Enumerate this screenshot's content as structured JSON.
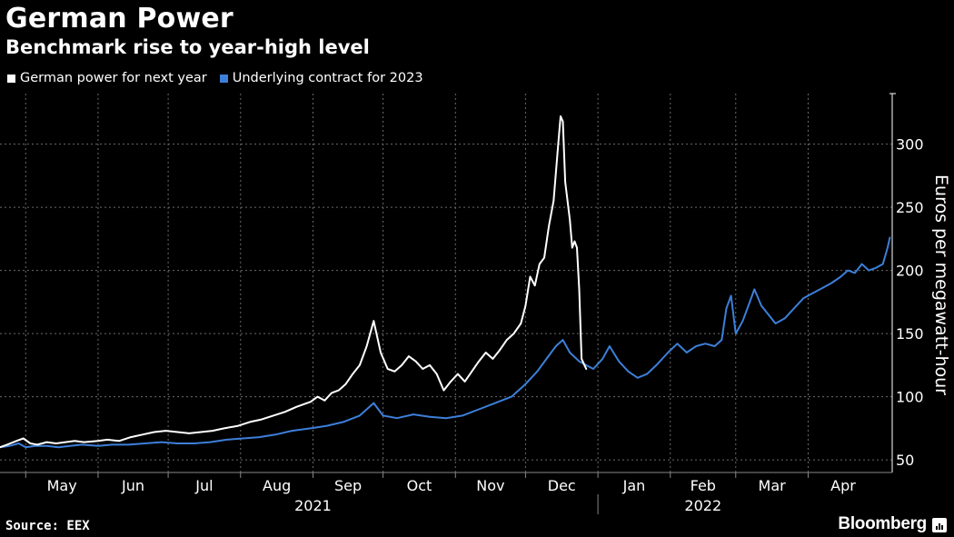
{
  "header": {
    "title": "German Power",
    "subtitle": "Benchmark rise to year-high level"
  },
  "footer": {
    "source": "Source: EEX",
    "brand": "Bloomberg",
    "brand_icon": "bloomberg-chart-icon"
  },
  "colors": {
    "background": "#000000",
    "series_white": "#ffffff",
    "series_blue": "#3d7fd9",
    "grid": "#6b6b6b"
  },
  "chart_data": {
    "type": "line",
    "title": "German Power",
    "subtitle": "Benchmark rise to year-high level",
    "ylabel": "Euros per megawatt-hour",
    "xlabel": "",
    "ylim": [
      40,
      340
    ],
    "xlim": [
      "2021-04-20",
      "2022-05-07"
    ],
    "yticks": [
      50,
      100,
      150,
      200,
      250,
      300
    ],
    "xtick_labels": [
      "May",
      "Jun",
      "Jul",
      "Aug",
      "Sep",
      "Oct",
      "Nov",
      "Dec",
      "Jan",
      "Feb",
      "Mar",
      "Apr"
    ],
    "xtick_dates": [
      "2021-05-01",
      "2021-06-01",
      "2021-07-01",
      "2021-08-01",
      "2021-09-01",
      "2021-10-01",
      "2021-11-01",
      "2021-12-01",
      "2022-01-01",
      "2022-02-01",
      "2022-03-01",
      "2022-04-01"
    ],
    "year_labels": [
      {
        "label": "2021",
        "date": "2021-09-01"
      },
      {
        "label": "2022",
        "date": "2022-02-15"
      }
    ],
    "year_divider": "2022-01-01",
    "grid": true,
    "legend_position": "top-left",
    "y_axis_side": "right",
    "series": [
      {
        "name": "German power for next year",
        "color": "#ffffff",
        "points": [
          [
            "2021-04-20",
            60
          ],
          [
            "2021-04-23",
            62
          ],
          [
            "2021-04-27",
            65
          ],
          [
            "2021-04-30",
            67
          ],
          [
            "2021-05-03",
            63
          ],
          [
            "2021-05-06",
            62
          ],
          [
            "2021-05-10",
            64
          ],
          [
            "2021-05-14",
            63
          ],
          [
            "2021-05-18",
            64
          ],
          [
            "2021-05-22",
            65
          ],
          [
            "2021-05-26",
            64
          ],
          [
            "2021-06-01",
            65
          ],
          [
            "2021-06-05",
            66
          ],
          [
            "2021-06-10",
            65
          ],
          [
            "2021-06-15",
            68
          ],
          [
            "2021-06-20",
            70
          ],
          [
            "2021-06-25",
            72
          ],
          [
            "2021-06-30",
            73
          ],
          [
            "2021-07-05",
            72
          ],
          [
            "2021-07-10",
            71
          ],
          [
            "2021-07-15",
            72
          ],
          [
            "2021-07-20",
            73
          ],
          [
            "2021-07-25",
            75
          ],
          [
            "2021-07-31",
            77
          ],
          [
            "2021-08-05",
            80
          ],
          [
            "2021-08-10",
            82
          ],
          [
            "2021-08-15",
            85
          ],
          [
            "2021-08-20",
            88
          ],
          [
            "2021-08-25",
            92
          ],
          [
            "2021-08-31",
            96
          ],
          [
            "2021-09-03",
            100
          ],
          [
            "2021-09-06",
            97
          ],
          [
            "2021-09-09",
            103
          ],
          [
            "2021-09-12",
            105
          ],
          [
            "2021-09-15",
            110
          ],
          [
            "2021-09-18",
            118
          ],
          [
            "2021-09-21",
            125
          ],
          [
            "2021-09-24",
            140
          ],
          [
            "2021-09-27",
            160
          ],
          [
            "2021-09-30",
            135
          ],
          [
            "2021-10-03",
            122
          ],
          [
            "2021-10-06",
            120
          ],
          [
            "2021-10-09",
            125
          ],
          [
            "2021-10-12",
            132
          ],
          [
            "2021-10-15",
            128
          ],
          [
            "2021-10-18",
            122
          ],
          [
            "2021-10-21",
            125
          ],
          [
            "2021-10-24",
            118
          ],
          [
            "2021-10-27",
            105
          ],
          [
            "2021-10-30",
            112
          ],
          [
            "2021-11-02",
            118
          ],
          [
            "2021-11-05",
            112
          ],
          [
            "2021-11-08",
            120
          ],
          [
            "2021-11-11",
            128
          ],
          [
            "2021-11-14",
            135
          ],
          [
            "2021-11-17",
            130
          ],
          [
            "2021-11-20",
            137
          ],
          [
            "2021-11-23",
            145
          ],
          [
            "2021-11-26",
            150
          ],
          [
            "2021-11-29",
            158
          ],
          [
            "2021-12-01",
            172
          ],
          [
            "2021-12-03",
            195
          ],
          [
            "2021-12-05",
            188
          ],
          [
            "2021-12-07",
            205
          ],
          [
            "2021-12-09",
            210
          ],
          [
            "2021-12-11",
            235
          ],
          [
            "2021-12-13",
            255
          ],
          [
            "2021-12-15",
            300
          ],
          [
            "2021-12-16",
            322
          ],
          [
            "2021-12-17",
            318
          ],
          [
            "2021-12-18",
            270
          ],
          [
            "2021-12-20",
            240
          ],
          [
            "2021-12-21",
            218
          ],
          [
            "2021-12-22",
            223
          ],
          [
            "2021-12-23",
            218
          ],
          [
            "2021-12-24",
            185
          ],
          [
            "2021-12-25",
            130
          ],
          [
            "2021-12-27",
            122
          ]
        ]
      },
      {
        "name": "Underlying contract for 2023",
        "color": "#3d7fd9",
        "points": [
          [
            "2021-04-20",
            60
          ],
          [
            "2021-04-24",
            61
          ],
          [
            "2021-04-28",
            63
          ],
          [
            "2021-05-01",
            60
          ],
          [
            "2021-05-05",
            61
          ],
          [
            "2021-05-10",
            61
          ],
          [
            "2021-05-15",
            60
          ],
          [
            "2021-05-20",
            61
          ],
          [
            "2021-05-25",
            62
          ],
          [
            "2021-06-01",
            61
          ],
          [
            "2021-06-07",
            62
          ],
          [
            "2021-06-14",
            62
          ],
          [
            "2021-06-21",
            63
          ],
          [
            "2021-06-28",
            64
          ],
          [
            "2021-07-05",
            63
          ],
          [
            "2021-07-12",
            63
          ],
          [
            "2021-07-19",
            64
          ],
          [
            "2021-07-26",
            66
          ],
          [
            "2021-08-02",
            67
          ],
          [
            "2021-08-09",
            68
          ],
          [
            "2021-08-16",
            70
          ],
          [
            "2021-08-23",
            73
          ],
          [
            "2021-08-31",
            75
          ],
          [
            "2021-09-07",
            77
          ],
          [
            "2021-09-14",
            80
          ],
          [
            "2021-09-21",
            85
          ],
          [
            "2021-09-27",
            95
          ],
          [
            "2021-10-01",
            85
          ],
          [
            "2021-10-07",
            83
          ],
          [
            "2021-10-14",
            86
          ],
          [
            "2021-10-21",
            84
          ],
          [
            "2021-10-28",
            83
          ],
          [
            "2021-11-04",
            85
          ],
          [
            "2021-11-11",
            90
          ],
          [
            "2021-11-18",
            95
          ],
          [
            "2021-11-25",
            100
          ],
          [
            "2021-12-01",
            110
          ],
          [
            "2021-12-06",
            120
          ],
          [
            "2021-12-10",
            130
          ],
          [
            "2021-12-14",
            140
          ],
          [
            "2021-12-17",
            145
          ],
          [
            "2021-12-20",
            135
          ],
          [
            "2021-12-24",
            128
          ],
          [
            "2021-12-27",
            125
          ],
          [
            "2021-12-30",
            122
          ],
          [
            "2022-01-03",
            130
          ],
          [
            "2022-01-06",
            140
          ],
          [
            "2022-01-10",
            128
          ],
          [
            "2022-01-14",
            120
          ],
          [
            "2022-01-18",
            115
          ],
          [
            "2022-01-22",
            118
          ],
          [
            "2022-01-26",
            125
          ],
          [
            "2022-01-31",
            135
          ],
          [
            "2022-02-04",
            142
          ],
          [
            "2022-02-08",
            135
          ],
          [
            "2022-02-12",
            140
          ],
          [
            "2022-02-16",
            142
          ],
          [
            "2022-02-20",
            140
          ],
          [
            "2022-02-23",
            145
          ],
          [
            "2022-02-25",
            170
          ],
          [
            "2022-02-27",
            180
          ],
          [
            "2022-03-01",
            150
          ],
          [
            "2022-03-04",
            160
          ],
          [
            "2022-03-07",
            175
          ],
          [
            "2022-03-09",
            185
          ],
          [
            "2022-03-12",
            172
          ],
          [
            "2022-03-15",
            165
          ],
          [
            "2022-03-18",
            158
          ],
          [
            "2022-03-22",
            162
          ],
          [
            "2022-03-26",
            170
          ],
          [
            "2022-03-30",
            178
          ],
          [
            "2022-04-03",
            182
          ],
          [
            "2022-04-07",
            186
          ],
          [
            "2022-04-11",
            190
          ],
          [
            "2022-04-15",
            195
          ],
          [
            "2022-04-18",
            200
          ],
          [
            "2022-04-21",
            198
          ],
          [
            "2022-04-24",
            205
          ],
          [
            "2022-04-27",
            200
          ],
          [
            "2022-04-30",
            202
          ],
          [
            "2022-05-03",
            205
          ],
          [
            "2022-05-05",
            218
          ],
          [
            "2022-05-06",
            226
          ]
        ]
      }
    ]
  }
}
